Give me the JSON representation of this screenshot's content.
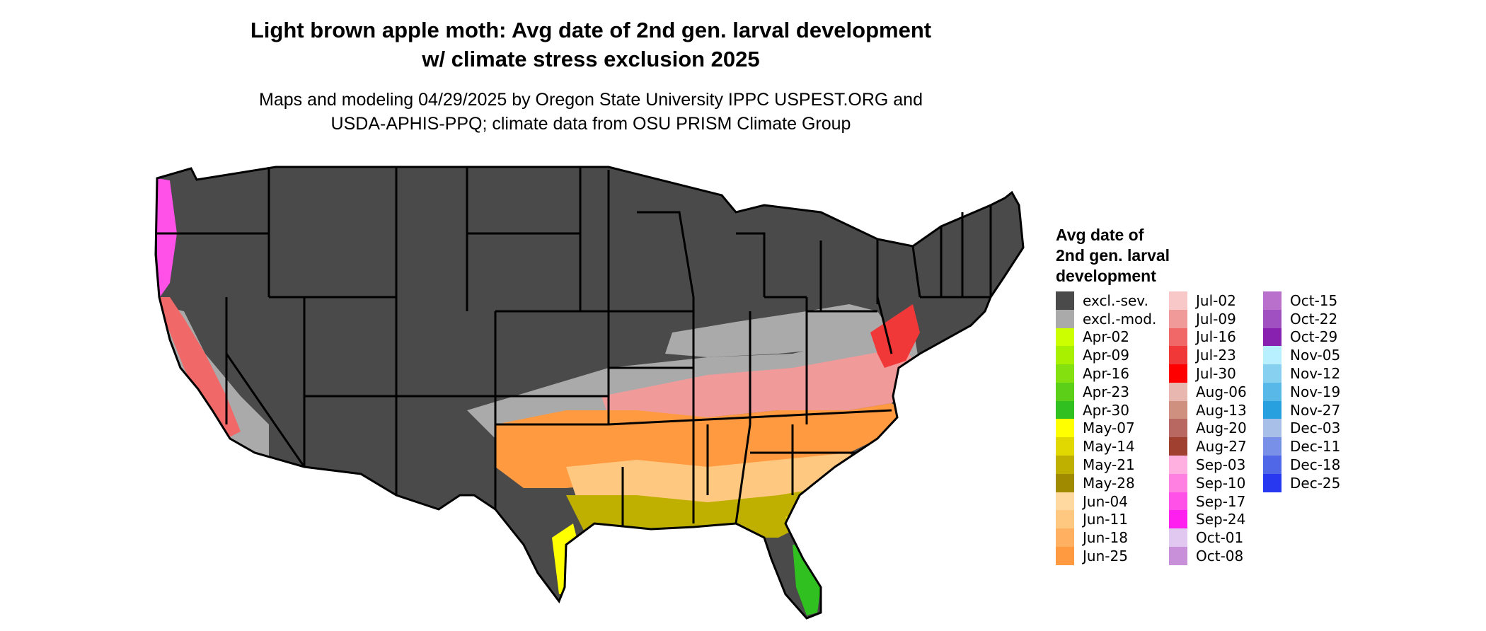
{
  "title_line1": "Light brown apple moth: Avg date of 2nd gen. larval development",
  "title_line2": "w/ climate stress exclusion 2025",
  "subtitle_line1": "Maps and modeling 04/29/2025 by Oregon State University IPPC USPEST.ORG and",
  "subtitle_line2": "USDA-APHIS-PPQ; climate data from OSU PRISM Climate Group",
  "legend": {
    "title_line1": "Avg date of",
    "title_line2": "2nd gen. larval",
    "title_line3": "development",
    "columns": [
      [
        {
          "label": "excl.-sev.",
          "color": "#4a4a4a"
        },
        {
          "label": "excl.-mod.",
          "color": "#aaaaaa"
        },
        {
          "label": "Apr-02",
          "color": "#ccff00"
        },
        {
          "label": "Apr-09",
          "color": "#a8ef00"
        },
        {
          "label": "Apr-16",
          "color": "#84e00e"
        },
        {
          "label": "Apr-23",
          "color": "#5cd018"
        },
        {
          "label": "Apr-30",
          "color": "#30c020"
        },
        {
          "label": "May-07",
          "color": "#ffff00"
        },
        {
          "label": "May-14",
          "color": "#e0d800"
        },
        {
          "label": "May-21",
          "color": "#bfb000"
        },
        {
          "label": "May-28",
          "color": "#a08a00"
        },
        {
          "label": "Jun-04",
          "color": "#ffd9a0"
        },
        {
          "label": "Jun-11",
          "color": "#ffc880"
        },
        {
          "label": "Jun-18",
          "color": "#ffb060"
        },
        {
          "label": "Jun-25",
          "color": "#ff9a40"
        }
      ],
      [
        {
          "label": "Jul-02",
          "color": "#f8c8c8"
        },
        {
          "label": "Jul-09",
          "color": "#f09a9a"
        },
        {
          "label": "Jul-16",
          "color": "#f06868"
        },
        {
          "label": "Jul-23",
          "color": "#f03838"
        },
        {
          "label": "Jul-30",
          "color": "#ff0000"
        },
        {
          "label": "Aug-06",
          "color": "#e8b8b0"
        },
        {
          "label": "Aug-13",
          "color": "#d09080"
        },
        {
          "label": "Aug-20",
          "color": "#b86860"
        },
        {
          "label": "Aug-27",
          "color": "#a04030"
        },
        {
          "label": "Sep-03",
          "color": "#ffb0e0"
        },
        {
          "label": "Sep-10",
          "color": "#ff80e0"
        },
        {
          "label": "Sep-17",
          "color": "#ff50e8"
        },
        {
          "label": "Sep-24",
          "color": "#ff20f0"
        },
        {
          "label": "Oct-01",
          "color": "#e0c8f0"
        },
        {
          "label": "Oct-08",
          "color": "#c890d8"
        }
      ],
      [
        {
          "label": "Oct-15",
          "color": "#b870cc"
        },
        {
          "label": "Oct-22",
          "color": "#a050c0"
        },
        {
          "label": "Oct-29",
          "color": "#8820b0"
        },
        {
          "label": "Nov-05",
          "color": "#b8f0ff"
        },
        {
          "label": "Nov-12",
          "color": "#88d0f0"
        },
        {
          "label": "Nov-19",
          "color": "#58b8e8"
        },
        {
          "label": "Nov-27",
          "color": "#28a0e0"
        },
        {
          "label": "Dec-03",
          "color": "#a8c0e8"
        },
        {
          "label": "Dec-11",
          "color": "#7890e8"
        },
        {
          "label": "Dec-18",
          "color": "#5068e8"
        },
        {
          "label": "Dec-25",
          "color": "#2838f0"
        }
      ]
    ]
  }
}
